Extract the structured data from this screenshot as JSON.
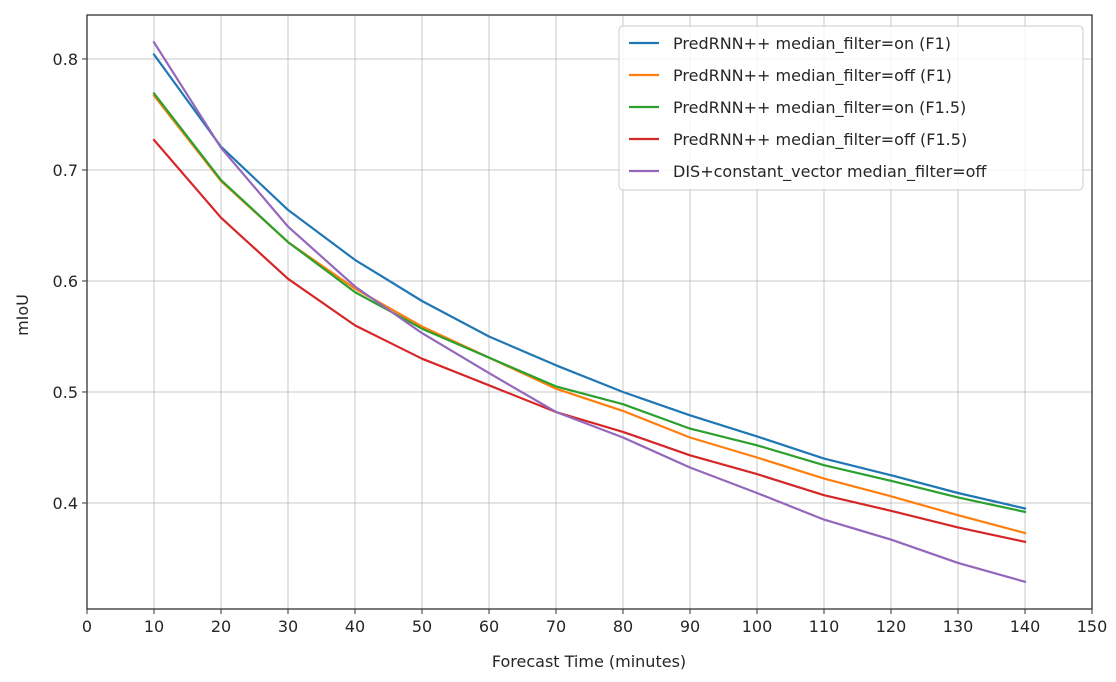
{
  "chart_data": {
    "type": "line",
    "title": "",
    "xlabel": "Forecast Time (minutes)",
    "ylabel": "mIoU",
    "xlim": [
      0,
      150
    ],
    "ylim": [
      0.3045,
      0.8396
    ],
    "grid": true,
    "legend_position": "top-right",
    "xticks": [
      "0",
      "10",
      "20",
      "30",
      "40",
      "50",
      "60",
      "70",
      "80",
      "90",
      "100",
      "110",
      "120",
      "130",
      "140",
      "150"
    ],
    "xtick_values": [
      0,
      10,
      20,
      30,
      40,
      50,
      60,
      70,
      80,
      90,
      100,
      110,
      120,
      130,
      140,
      150
    ],
    "yticks": [
      "0.4",
      "0.5",
      "0.6",
      "0.7",
      "0.8"
    ],
    "ytick_values": [
      0.4,
      0.5,
      0.6,
      0.7,
      0.8
    ],
    "x": [
      10,
      20,
      30,
      40,
      50,
      60,
      70,
      80,
      90,
      100,
      110,
      120,
      130,
      140
    ],
    "series": [
      {
        "name": "PredRNN++ median_filter=on (F1)",
        "color": "#1f77b4",
        "values": [
          0.804,
          0.721,
          0.664,
          0.619,
          0.582,
          0.55,
          0.524,
          0.5,
          0.479,
          0.46,
          0.44,
          0.425,
          0.409,
          0.395
        ]
      },
      {
        "name": "PredRNN++ median_filter=off (F1)",
        "color": "#ff7f0e",
        "values": [
          0.767,
          0.69,
          0.635,
          0.593,
          0.559,
          0.531,
          0.503,
          0.483,
          0.459,
          0.441,
          0.422,
          0.406,
          0.389,
          0.373
        ]
      },
      {
        "name": "PredRNN++ median_filter=on (F1.5)",
        "color": "#2ca02c",
        "values": [
          0.769,
          0.691,
          0.635,
          0.59,
          0.557,
          0.531,
          0.505,
          0.489,
          0.467,
          0.452,
          0.434,
          0.42,
          0.405,
          0.392
        ]
      },
      {
        "name": "PredRNN++ median_filter=off (F1.5)",
        "color": "#d62728",
        "values": [
          0.727,
          0.657,
          0.602,
          0.56,
          0.53,
          0.506,
          0.482,
          0.464,
          0.443,
          0.426,
          0.407,
          0.393,
          0.378,
          0.365
        ]
      },
      {
        "name": "DIS+constant_vector median_filter=off",
        "color": "#9467bd",
        "values": [
          0.815,
          0.72,
          0.649,
          0.595,
          0.553,
          0.517,
          0.482,
          0.459,
          0.432,
          0.409,
          0.385,
          0.367,
          0.346,
          0.329
        ]
      }
    ]
  }
}
